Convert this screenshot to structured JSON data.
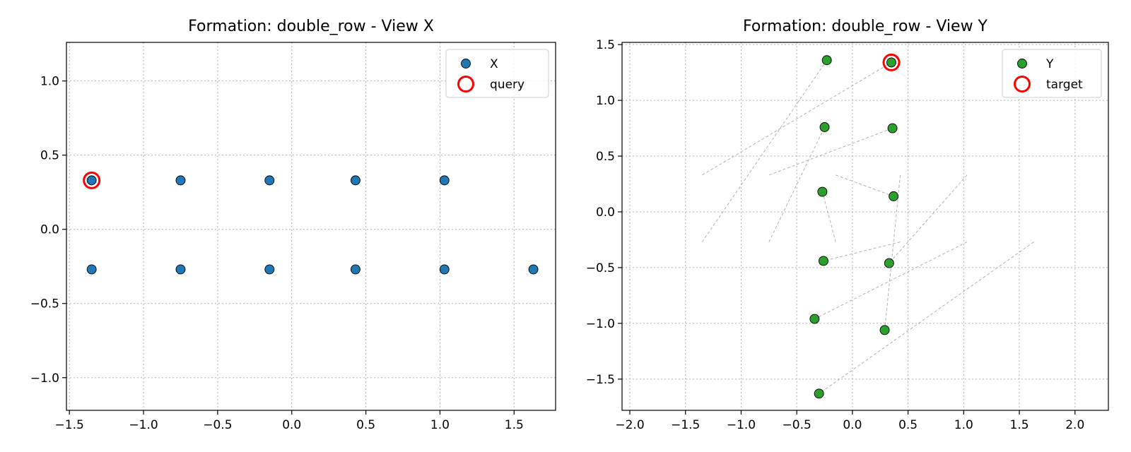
{
  "chart_data": [
    {
      "type": "scatter",
      "title": "Formation: double_row - View X",
      "xlabel": "",
      "ylabel": "",
      "xlim": [
        -1.52,
        1.78
      ],
      "ylim": [
        -1.22,
        1.26
      ],
      "xticks": [
        -1.5,
        -1.0,
        -0.5,
        0.0,
        0.5,
        1.0,
        1.5
      ],
      "xtick_labels": [
        "−1.5",
        "−1.0",
        "−0.5",
        "0.0",
        "0.5",
        "1.0",
        "1.5"
      ],
      "yticks": [
        -1.0,
        -0.5,
        0.0,
        0.5,
        1.0
      ],
      "ytick_labels": [
        "−1.0",
        "−0.5",
        "0.0",
        "0.5",
        "1.0"
      ],
      "grid": true,
      "legend_position": "top-right",
      "series": [
        {
          "name": "X",
          "color": "#1f77b4",
          "points": [
            [
              -1.35,
              0.33
            ],
            [
              -0.75,
              0.33
            ],
            [
              -0.15,
              0.33
            ],
            [
              0.43,
              0.33
            ],
            [
              1.03,
              0.33
            ],
            [
              -1.35,
              -0.27
            ],
            [
              -0.75,
              -0.27
            ],
            [
              -0.15,
              -0.27
            ],
            [
              0.43,
              -0.27
            ],
            [
              1.03,
              -0.27
            ],
            [
              1.63,
              -0.27
            ]
          ]
        }
      ],
      "highlight": {
        "name": "query",
        "color": "#ff0000",
        "point": [
          -1.35,
          0.33
        ]
      },
      "links": []
    },
    {
      "type": "scatter",
      "title": "Formation: double_row - View Y",
      "xlabel": "",
      "ylabel": "",
      "xlim": [
        -2.07,
        2.3
      ],
      "ylim": [
        -1.78,
        1.52
      ],
      "xticks": [
        -2.0,
        -1.5,
        -1.0,
        -0.5,
        0.0,
        0.5,
        1.0,
        1.5,
        2.0
      ],
      "xtick_labels": [
        "−2.0",
        "−1.5",
        "−1.0",
        "−0.5",
        "0.0",
        "0.5",
        "1.0",
        "1.5",
        "2.0"
      ],
      "yticks": [
        -1.5,
        -1.0,
        -0.5,
        0.0,
        0.5,
        1.0,
        1.5
      ],
      "ytick_labels": [
        "−1.5",
        "−1.0",
        "−0.5",
        "0.0",
        "0.5",
        "1.0",
        "1.5"
      ],
      "grid": true,
      "legend_position": "top-right",
      "series": [
        {
          "name": "Y",
          "color": "#2ca02c",
          "points": [
            [
              -0.23,
              1.36
            ],
            [
              0.35,
              1.34
            ],
            [
              -0.25,
              0.76
            ],
            [
              0.36,
              0.75
            ],
            [
              -0.27,
              0.18
            ],
            [
              0.37,
              0.14
            ],
            [
              -0.26,
              -0.44
            ],
            [
              0.33,
              -0.46
            ],
            [
              -0.34,
              -0.96
            ],
            [
              0.29,
              -1.06
            ],
            [
              -0.3,
              -1.63
            ]
          ]
        }
      ],
      "highlight": {
        "name": "target",
        "color": "#ff0000",
        "point": [
          0.35,
          1.34
        ]
      },
      "links": [
        [
          [
            -1.35,
            0.33
          ],
          [
            0.35,
            1.34
          ]
        ],
        [
          [
            -1.35,
            -0.27
          ],
          [
            -0.23,
            1.36
          ]
        ],
        [
          [
            -0.75,
            0.33
          ],
          [
            0.36,
            0.75
          ]
        ],
        [
          [
            -0.75,
            -0.27
          ],
          [
            -0.25,
            0.76
          ]
        ],
        [
          [
            -0.15,
            0.33
          ],
          [
            0.37,
            0.14
          ]
        ],
        [
          [
            -0.15,
            -0.27
          ],
          [
            -0.27,
            0.18
          ]
        ],
        [
          [
            0.43,
            0.33
          ],
          [
            0.29,
            -1.06
          ]
        ],
        [
          [
            0.43,
            -0.27
          ],
          [
            -0.26,
            -0.44
          ]
        ],
        [
          [
            1.03,
            0.33
          ],
          [
            0.33,
            -0.46
          ]
        ],
        [
          [
            1.03,
            -0.27
          ],
          [
            -0.34,
            -0.96
          ]
        ],
        [
          [
            1.63,
            -0.27
          ],
          [
            -0.3,
            -1.63
          ]
        ]
      ]
    }
  ]
}
